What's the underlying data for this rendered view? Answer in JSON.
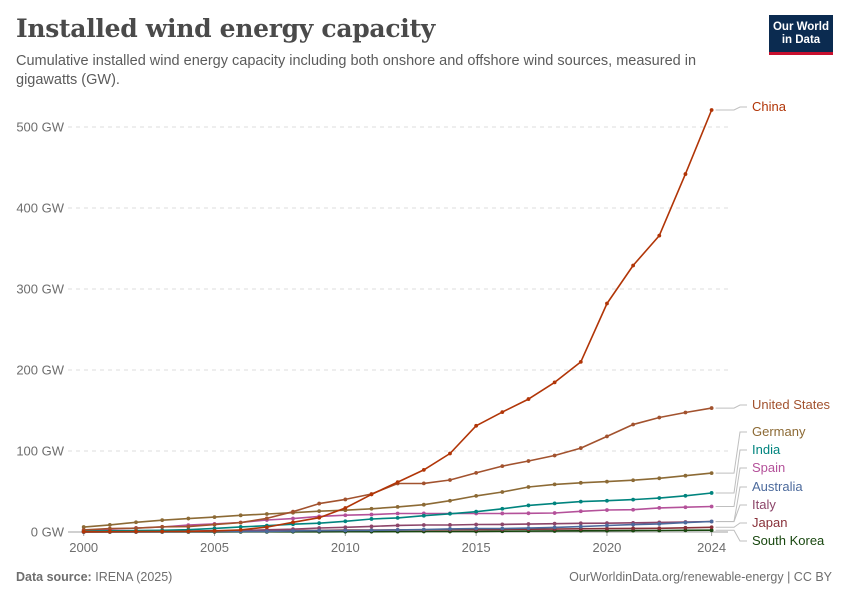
{
  "header": {
    "title": "Installed wind energy capacity",
    "subtitle": "Cumulative installed wind energy capacity including both onshore and offshore wind sources, measured in gigawatts (GW).",
    "logo_line1": "Our World",
    "logo_line2": "in Data"
  },
  "footer": {
    "source_label": "Data source:",
    "source_value": "IRENA (2025)",
    "link": "OurWorldinData.org/renewable-energy | CC BY"
  },
  "chart_data": {
    "type": "line",
    "title": "Installed wind energy capacity",
    "ylabel": "",
    "xlabel": "",
    "xlim": [
      2000,
      2024
    ],
    "ylim": [
      0,
      520
    ],
    "grid": "horizontal dashed",
    "x_ticks": [
      "2000",
      "2005",
      "2010",
      "2015",
      "2020",
      "2024"
    ],
    "y_ticks": [
      {
        "value": 0,
        "label": "0 GW"
      },
      {
        "value": 100,
        "label": "100 GW"
      },
      {
        "value": 200,
        "label": "200 GW"
      },
      {
        "value": 300,
        "label": "300 GW"
      },
      {
        "value": 400,
        "label": "400 GW"
      },
      {
        "value": 500,
        "label": "500 GW"
      }
    ],
    "x": [
      2000,
      2001,
      2002,
      2003,
      2004,
      2005,
      2006,
      2007,
      2008,
      2009,
      2010,
      2011,
      2012,
      2013,
      2014,
      2015,
      2016,
      2017,
      2018,
      2019,
      2020,
      2021,
      2022,
      2023,
      2024
    ],
    "series": [
      {
        "name": "China",
        "color": "#b13507",
        "values": [
          0.3,
          0.4,
          0.5,
          0.6,
          0.8,
          1.3,
          2.6,
          6.0,
          12.0,
          17.6,
          29.6,
          46.4,
          61.6,
          76.7,
          96.9,
          131.1,
          148.0,
          164.1,
          184.7,
          210.0,
          282.1,
          329.0,
          365.9,
          441.9,
          521.0
        ]
      },
      {
        "name": "United States",
        "color": "#a2522e",
        "values": [
          2.6,
          4.2,
          4.7,
          6.4,
          6.7,
          9.1,
          11.6,
          16.8,
          25.1,
          35.1,
          40.2,
          46.9,
          59.9,
          60.0,
          64.2,
          73.0,
          81.3,
          87.6,
          94.4,
          103.6,
          118.0,
          132.7,
          141.3,
          147.5,
          153.0
        ]
      },
      {
        "name": "Germany",
        "color": "#8c6a35",
        "values": [
          6.1,
          8.8,
          12.0,
          14.6,
          16.6,
          18.4,
          20.6,
          22.2,
          23.8,
          25.7,
          26.9,
          28.7,
          31.0,
          33.7,
          38.6,
          44.6,
          49.4,
          55.6,
          58.8,
          60.7,
          62.2,
          63.9,
          66.3,
          69.5,
          72.7
        ]
      },
      {
        "name": "India",
        "color": "#00847e",
        "values": [
          1.2,
          1.5,
          1.7,
          2.1,
          2.9,
          4.4,
          6.3,
          7.8,
          9.6,
          10.9,
          13.2,
          16.1,
          17.4,
          20.1,
          22.5,
          25.1,
          28.7,
          32.8,
          35.3,
          37.5,
          38.6,
          40.0,
          41.9,
          44.7,
          48.2
        ]
      },
      {
        "name": "Spain",
        "color": "#b4519a",
        "values": [
          2.2,
          3.5,
          5.0,
          6.2,
          8.5,
          10.0,
          11.7,
          14.8,
          16.6,
          19.2,
          20.7,
          21.5,
          22.8,
          22.9,
          22.9,
          22.9,
          22.9,
          23.1,
          23.4,
          25.6,
          27.1,
          27.5,
          29.8,
          30.6,
          31.5
        ]
      },
      {
        "name": "Australia",
        "color": "#4c6a9c",
        "values": [
          0.0,
          0.1,
          0.1,
          0.2,
          0.4,
          0.7,
          0.8,
          0.8,
          1.3,
          1.7,
          1.9,
          2.1,
          2.6,
          3.1,
          3.8,
          4.3,
          4.3,
          4.8,
          5.7,
          6.7,
          8.0,
          9.1,
          10.0,
          11.6,
          13.0
        ]
      },
      {
        "name": "Italy",
        "color": "#8c4569",
        "values": [
          0.4,
          0.7,
          0.8,
          0.9,
          1.1,
          1.6,
          1.9,
          2.7,
          3.5,
          4.9,
          5.8,
          6.9,
          8.1,
          8.6,
          8.7,
          9.2,
          9.4,
          9.8,
          10.3,
          10.7,
          10.9,
          11.3,
          11.9,
          12.3,
          12.9
        ]
      },
      {
        "name": "Japan",
        "color": "#883039",
        "values": [
          0.1,
          0.3,
          0.4,
          0.6,
          0.8,
          1.0,
          1.3,
          1.5,
          1.8,
          2.0,
          2.3,
          2.4,
          2.6,
          2.7,
          2.8,
          3.0,
          3.2,
          3.4,
          3.6,
          3.9,
          4.2,
          4.5,
          4.6,
          5.2,
          5.8
        ]
      },
      {
        "name": "South Korea",
        "color": "#18470f",
        "values": [
          0.0,
          0.0,
          0.0,
          0.0,
          0.0,
          0.1,
          0.2,
          0.2,
          0.3,
          0.3,
          0.4,
          0.4,
          0.5,
          0.6,
          0.6,
          0.8,
          1.0,
          1.1,
          1.3,
          1.5,
          1.6,
          1.7,
          1.9,
          2.1,
          2.2
        ]
      }
    ]
  }
}
